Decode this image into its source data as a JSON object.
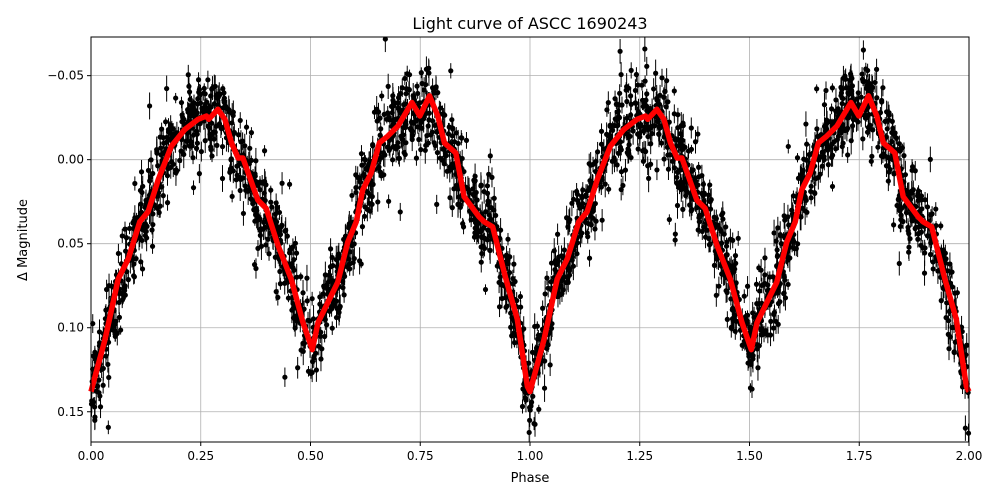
{
  "chart_data": {
    "type": "scatter",
    "title": "Light curve of ASCC 1690243",
    "xlabel": "Phase",
    "ylabel": "Δ Magnitude",
    "xlim": [
      0.0,
      2.0
    ],
    "ylim": [
      0.168,
      -0.073
    ],
    "y_inverted": true,
    "grid": true,
    "x_ticks": [
      "0.00",
      "0.25",
      "0.50",
      "0.75",
      "1.00",
      "1.25",
      "1.50",
      "1.75",
      "2.00"
    ],
    "y_ticks": [
      "−0.05",
      "0.00",
      "0.05",
      "0.10",
      "0.15"
    ],
    "period_repeat": 1.0,
    "points_color": "#000000",
    "points_with_error_bars": true,
    "points_scatter_about_model": 0.012,
    "model": {
      "color": "#ff0000",
      "phase": [
        0.0,
        0.032,
        0.062,
        0.085,
        0.111,
        0.13,
        0.153,
        0.183,
        0.214,
        0.244,
        0.263,
        0.268,
        0.289,
        0.305,
        0.32,
        0.335,
        0.346,
        0.38,
        0.399,
        0.426,
        0.456,
        0.483,
        0.504,
        0.517,
        0.547,
        0.562,
        0.585,
        0.604,
        0.619,
        0.638,
        0.657,
        0.676,
        0.699,
        0.731,
        0.749,
        0.771,
        0.79,
        0.805,
        0.831,
        0.85,
        0.884,
        0.896,
        0.915,
        0.945,
        0.971,
        0.994
      ],
      "delta_mag": [
        0.138,
        0.107,
        0.071,
        0.059,
        0.037,
        0.031,
        0.012,
        -0.008,
        -0.018,
        -0.024,
        -0.026,
        -0.024,
        -0.03,
        -0.024,
        -0.01,
        -0.001,
        -0.001,
        0.024,
        0.029,
        0.051,
        0.071,
        0.097,
        0.113,
        0.097,
        0.081,
        0.073,
        0.049,
        0.037,
        0.018,
        0.008,
        -0.01,
        -0.014,
        -0.02,
        -0.034,
        -0.026,
        -0.038,
        -0.026,
        -0.01,
        -0.004,
        0.022,
        0.034,
        0.037,
        0.04,
        0.071,
        0.095,
        0.135
      ]
    }
  }
}
